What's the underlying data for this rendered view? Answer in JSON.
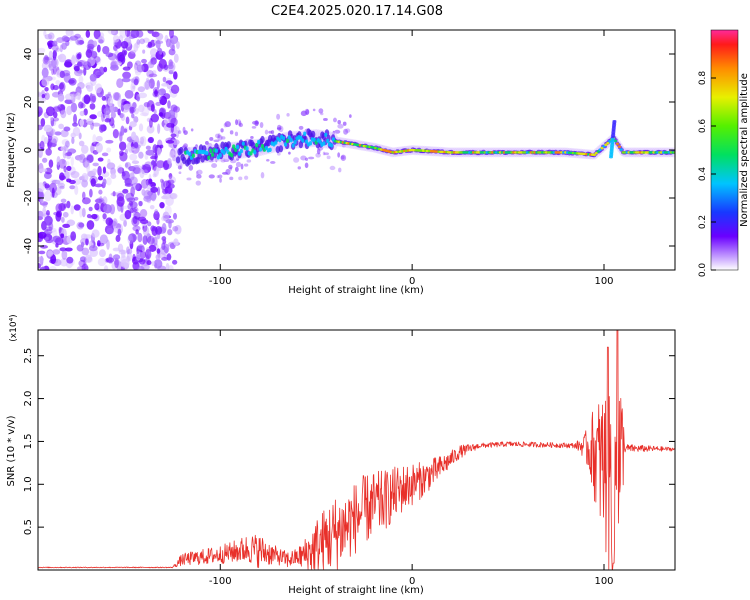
{
  "title": "C2E4.2025.020.17.14.G08",
  "colors": {
    "snr_line": "#e8302a",
    "axis": "#000000",
    "background": "#ffffff"
  },
  "chart_data": [
    {
      "type": "heatmap",
      "title": "",
      "xlabel": "Height of straight line (km)",
      "ylabel": "Frequency (Hz)",
      "xlim": [
        -195,
        137
      ],
      "ylim": [
        -50,
        50
      ],
      "x_ticks": [
        -100,
        0,
        100
      ],
      "x_tick_labels": [
        "-100",
        "0",
        "100"
      ],
      "y_ticks": [
        40,
        20,
        0,
        -20,
        -40
      ],
      "y_tick_labels": [
        "40",
        "20",
        "0",
        "-20",
        "-40"
      ],
      "colorbar": {
        "label": "Normalized spectral amplitude",
        "range": [
          0,
          1
        ],
        "ticks": [
          0.0,
          0.2,
          0.4,
          0.6,
          0.8
        ],
        "tick_labels": [
          "0.0",
          "0.2",
          "0.4",
          "0.6",
          "0.8"
        ],
        "colormap": "rainbow (violet to red)"
      },
      "features": {
        "noise_region_x": [
          -195,
          -122
        ],
        "ridge": [
          {
            "x": -122,
            "freq": -3
          },
          {
            "x": -100,
            "freq": -1
          },
          {
            "x": -80,
            "freq": 1
          },
          {
            "x": -65,
            "freq": 4
          },
          {
            "x": -50,
            "freq": 5
          },
          {
            "x": -35,
            "freq": 3
          },
          {
            "x": -20,
            "freq": 1
          },
          {
            "x": -10,
            "freq": -1
          },
          {
            "x": 0,
            "freq": 0
          },
          {
            "x": 20,
            "freq": -1
          },
          {
            "x": 50,
            "freq": -1
          },
          {
            "x": 80,
            "freq": -1
          },
          {
            "x": 95,
            "freq": -2
          },
          {
            "x": 105,
            "freq": 5
          },
          {
            "x": 110,
            "freq": -1
          },
          {
            "x": 137,
            "freq": -1
          }
        ]
      }
    },
    {
      "type": "line",
      "title": "",
      "xlabel": "Height of straight line (km)",
      "ylabel": "SNR (10 * v/v)",
      "y_scale_label": "(x10⁴)",
      "xlim": [
        -195,
        137
      ],
      "ylim": [
        0,
        2.8
      ],
      "x_ticks": [
        -100,
        0,
        100
      ],
      "x_tick_labels": [
        "-100",
        "0",
        "100"
      ],
      "y_ticks": [
        0.5,
        1.0,
        1.5,
        2.0,
        2.5
      ],
      "y_tick_labels": [
        "0.5",
        "1.0",
        "1.5",
        "2.0",
        "2.5"
      ],
      "series": [
        {
          "color": "#e8302a",
          "baseline": [
            [
              -195,
              0.03
            ],
            [
              -125,
              0.03
            ],
            [
              -120,
              0.12
            ],
            [
              -100,
              0.18
            ],
            [
              -85,
              0.25
            ],
            [
              -75,
              0.2
            ],
            [
              -65,
              0.12
            ],
            [
              -55,
              0.18
            ],
            [
              -45,
              0.35
            ],
            [
              -35,
              0.5
            ],
            [
              -25,
              0.7
            ],
            [
              -15,
              0.8
            ],
            [
              -5,
              0.95
            ],
            [
              5,
              1.05
            ],
            [
              15,
              1.2
            ],
            [
              25,
              1.38
            ],
            [
              35,
              1.45
            ],
            [
              50,
              1.47
            ],
            [
              70,
              1.46
            ],
            [
              88,
              1.45
            ],
            [
              93,
              1.42
            ],
            [
              100,
              1.2
            ],
            [
              105,
              1.0
            ],
            [
              110,
              1.42
            ],
            [
              137,
              1.41
            ]
          ],
          "noise_amplitude": [
            [
              -195,
              0.005
            ],
            [
              -125,
              0.005
            ],
            [
              -120,
              0.07
            ],
            [
              -95,
              0.12
            ],
            [
              -80,
              0.2
            ],
            [
              -70,
              0.1
            ],
            [
              -60,
              0.1
            ],
            [
              -50,
              0.35
            ],
            [
              -40,
              0.45
            ],
            [
              -20,
              0.4
            ],
            [
              0,
              0.25
            ],
            [
              20,
              0.1
            ],
            [
              35,
              0.03
            ],
            [
              85,
              0.03
            ],
            [
              90,
              0.15
            ],
            [
              98,
              0.8
            ],
            [
              103,
              1.2
            ],
            [
              108,
              1.3
            ],
            [
              111,
              0.05
            ],
            [
              137,
              0.02
            ]
          ],
          "peaks": [
            {
              "x": 102,
              "y": 2.6
            },
            {
              "x": 107,
              "y": 2.8
            },
            {
              "x": 105,
              "y": 0.08
            }
          ]
        }
      ]
    }
  ]
}
